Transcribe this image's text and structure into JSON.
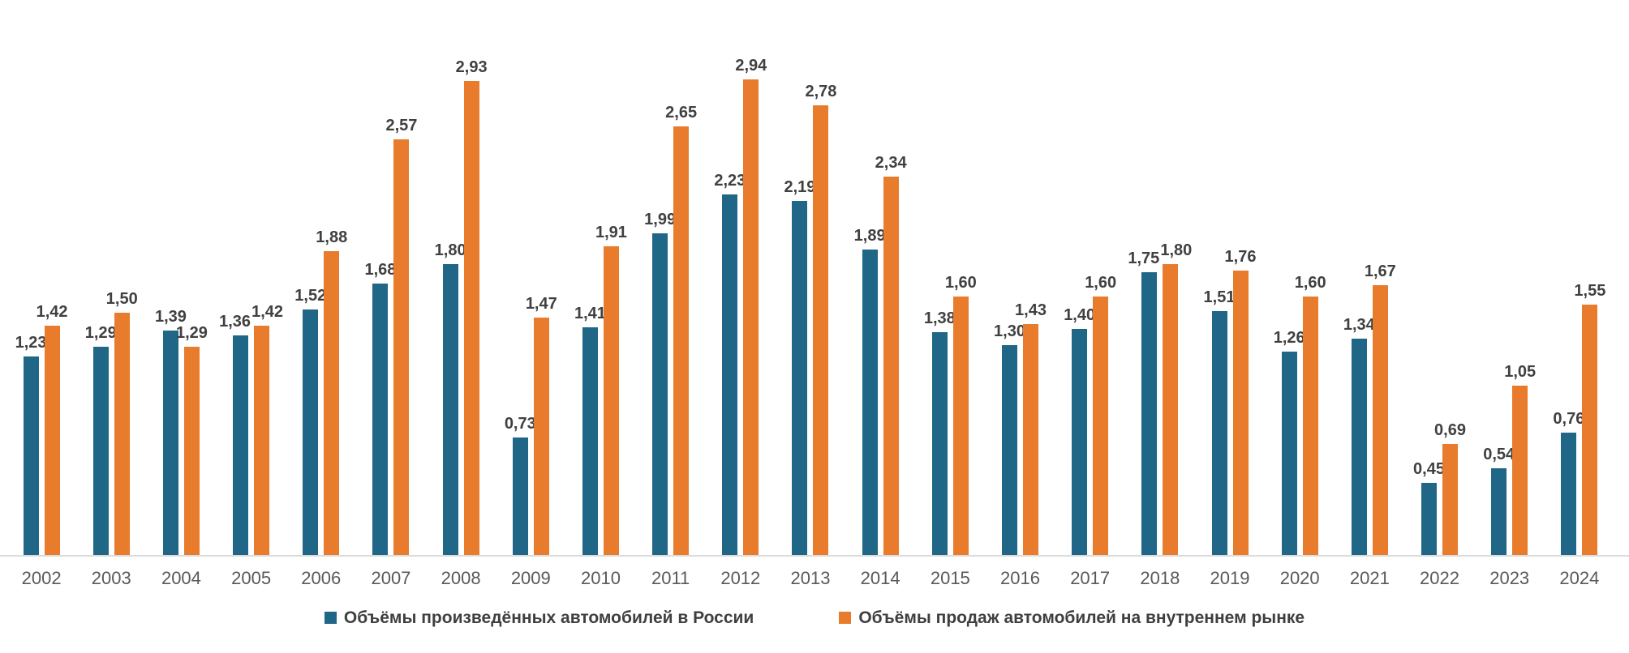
{
  "chart_data": {
    "type": "bar",
    "title": "",
    "categories": [
      "2002",
      "2003",
      "2004",
      "2005",
      "2006",
      "2007",
      "2008",
      "2009",
      "2010",
      "2011",
      "2012",
      "2013",
      "2014",
      "2015",
      "2016",
      "2017",
      "2018",
      "2019",
      "2020",
      "2021",
      "2022",
      "2023",
      "2024"
    ],
    "series": [
      {
        "key": "produced",
        "name": "Объёмы произведённых автомобилей в России",
        "color": "#1F6687",
        "values": [
          1.23,
          1.29,
          1.39,
          1.36,
          1.52,
          1.68,
          1.8,
          0.73,
          1.41,
          1.99,
          2.23,
          2.19,
          1.89,
          1.38,
          1.3,
          1.4,
          1.75,
          1.51,
          1.26,
          1.34,
          0.45,
          0.54,
          0.76
        ],
        "labels": [
          "1,23",
          "1,29",
          "1,39",
          "1,36",
          "1,52",
          "1,68",
          "1,80",
          "0,73",
          "1,41",
          "1,99",
          "2,23",
          "2,19",
          "1,89",
          "1,38",
          "1,30",
          "1,40",
          "1,75",
          "1,51",
          "1,26",
          "1,34",
          "0,45",
          "0,54",
          "0,76"
        ]
      },
      {
        "key": "sold",
        "name": "Объёмы продаж автомобилей на внутреннем рынке",
        "color": "#E87C2C",
        "values": [
          1.42,
          1.5,
          1.29,
          1.42,
          1.88,
          2.57,
          2.93,
          1.47,
          1.91,
          2.65,
          2.94,
          2.78,
          2.34,
          1.6,
          1.43,
          1.6,
          1.8,
          1.76,
          1.6,
          1.67,
          0.69,
          1.05,
          1.55
        ],
        "labels": [
          "1,42",
          "1,50",
          "1,29",
          "1,42",
          "1,88",
          "2,57",
          "2,93",
          "1,47",
          "1,91",
          "2,65",
          "2,94",
          "2,78",
          "2,34",
          "1,60",
          "1,43",
          "1,60",
          "1,80",
          "1,76",
          "1,60",
          "1,67",
          "0,69",
          "1,05",
          "1,55"
        ]
      }
    ],
    "decimal_separator": ",",
    "value_labels_shown": true,
    "ylim": [
      0,
      3.1
    ],
    "grid": false,
    "y_axis_shown": false,
    "legend_position": "bottom",
    "axis_line_color": "#dbdbdb",
    "data_label_color": "#404040",
    "year_label_color": "#595959"
  }
}
